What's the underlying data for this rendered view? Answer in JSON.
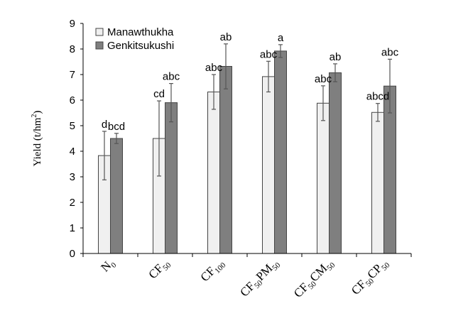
{
  "chart_data": {
    "type": "bar",
    "ylabel": "Yield (t/hm²)",
    "ylabel_main": "Yield (t/hm",
    "ylabel_sup": "2",
    "ylabel_end": ")",
    "ylim": [
      0,
      9
    ],
    "yticks": [
      "0",
      "1",
      "2",
      "3",
      "4",
      "5",
      "6",
      "7",
      "8",
      "9"
    ],
    "grid": false,
    "legend_position": "top-left",
    "categories": [
      {
        "label": "N0",
        "parts": [
          {
            "t": "N",
            "sub": false
          },
          {
            "t": "0",
            "sub": true
          }
        ]
      },
      {
        "label": "CF50",
        "parts": [
          {
            "t": "CF",
            "sub": false
          },
          {
            "t": "50",
            "sub": true
          }
        ]
      },
      {
        "label": "CF100",
        "parts": [
          {
            "t": "CF",
            "sub": false
          },
          {
            "t": "100",
            "sub": true
          }
        ]
      },
      {
        "label": "CF50PM50",
        "parts": [
          {
            "t": "CF",
            "sub": false
          },
          {
            "t": "50",
            "sub": true
          },
          {
            "t": "PM",
            "sub": false
          },
          {
            "t": "50",
            "sub": true
          }
        ]
      },
      {
        "label": "CF50CM50",
        "parts": [
          {
            "t": "CF",
            "sub": false
          },
          {
            "t": "50",
            "sub": true
          },
          {
            "t": "CM",
            "sub": false
          },
          {
            "t": "50",
            "sub": true
          }
        ]
      },
      {
        "label": "CF50CP50",
        "parts": [
          {
            "t": "CF",
            "sub": false
          },
          {
            "t": "50",
            "sub": true
          },
          {
            "t": "CP",
            "sub": false
          },
          {
            "t": "50",
            "sub": true
          }
        ]
      }
    ],
    "series": [
      {
        "name": "Manawthukha",
        "color": "#f0f0f0",
        "values": [
          3.83,
          4.5,
          6.32,
          6.92,
          5.88,
          5.52
        ],
        "errors": [
          0.95,
          1.47,
          0.68,
          0.6,
          0.68,
          0.35
        ],
        "labels": [
          "d",
          "cd",
          "abc",
          "abc",
          "abc",
          "abcd"
        ]
      },
      {
        "name": "Genkitsukushi",
        "color": "#7f7f7f",
        "values": [
          4.5,
          5.9,
          7.32,
          7.92,
          7.07,
          6.55
        ],
        "errors": [
          0.2,
          0.75,
          0.88,
          0.25,
          0.35,
          1.05
        ],
        "labels": [
          "bcd",
          "abc",
          "ab",
          "a",
          "ab",
          "abc"
        ]
      }
    ]
  }
}
